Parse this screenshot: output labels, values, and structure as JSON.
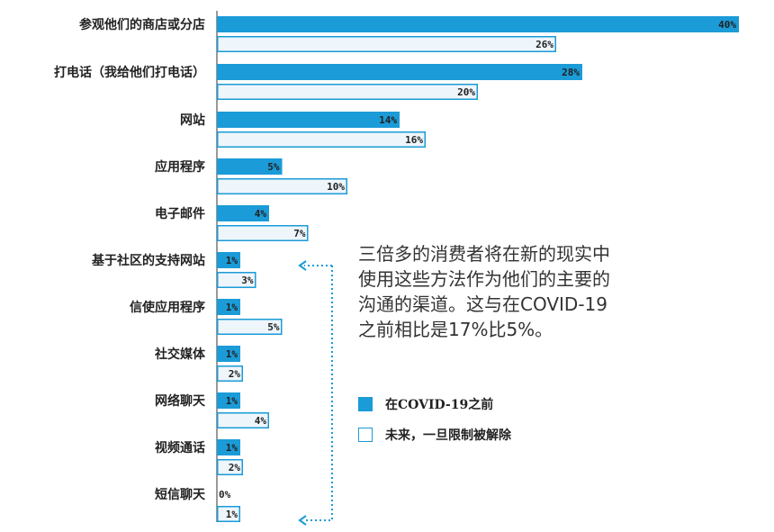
{
  "chart_data": {
    "type": "bar",
    "orientation": "horizontal",
    "categories": [
      "参观他们的商店或分店",
      "打电话（我给他们打电话）",
      "网站",
      "应用程序",
      "电子邮件",
      "基于社区的支持网站",
      "信使应用程序",
      "社交媒体",
      "网络聊天",
      "视频通话",
      "短信聊天"
    ],
    "series": [
      {
        "name": "在COVID-19之前",
        "values": [
          40,
          28,
          14,
          5,
          4,
          1,
          1,
          1,
          1,
          1,
          0
        ],
        "labels": [
          "40%",
          "28%",
          "14%",
          "5%",
          "4%",
          "1%",
          "1%",
          "1%",
          "1%",
          "1%",
          "0%"
        ]
      },
      {
        "name": "未来，一旦限制被解除",
        "values": [
          26,
          20,
          16,
          10,
          7,
          3,
          5,
          2,
          4,
          2,
          1
        ],
        "labels": [
          "26%",
          "20%",
          "16%",
          "10%",
          "7%",
          "3%",
          "5%",
          "2%",
          "4%",
          "2%",
          "1%"
        ]
      }
    ],
    "xlim": [
      0,
      40
    ],
    "grid": false,
    "legend_position": "right",
    "colors": {
      "pre": "#1b9bd7",
      "future_fill": "#eef6fc",
      "future_border": "#1b9bd7",
      "arrow": "#1b9bd7"
    }
  },
  "annotation": {
    "lines": [
      "三倍多的消费者将在新的现实中",
      "使用这些方法作为他们的主要的",
      "沟通的渠道。这与在COVID-19",
      "之前相比是17%比5%。"
    ]
  },
  "legend": {
    "items": [
      {
        "label": "在COVID-19之前",
        "style": "filled"
      },
      {
        "label": "未来，一旦限制被解除",
        "style": "outlined"
      }
    ]
  }
}
